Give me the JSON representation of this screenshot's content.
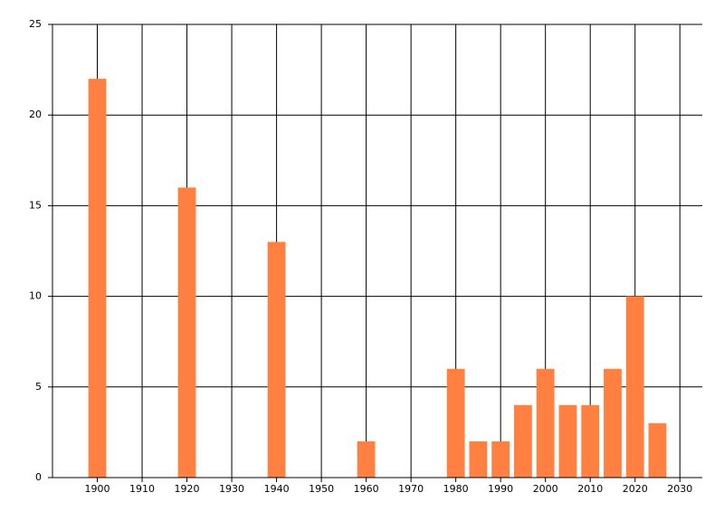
{
  "chart_data": {
    "type": "bar",
    "x": [
      1900,
      1920,
      1940,
      1960,
      1980,
      1985,
      1990,
      1995,
      2000,
      2005,
      2010,
      2015,
      2020,
      2025
    ],
    "values": [
      22,
      16,
      13,
      2,
      6,
      2,
      2,
      4,
      6,
      4,
      4,
      6,
      10,
      3
    ],
    "color": "#ff8040",
    "xlim": [
      1890,
      2035
    ],
    "xticks": [
      1900,
      1910,
      1920,
      1930,
      1940,
      1950,
      1960,
      1970,
      1980,
      1990,
      2000,
      2010,
      2020,
      2030
    ],
    "ylim": [
      0,
      25
    ],
    "yticks": [
      0,
      5,
      10,
      15,
      20,
      25
    ],
    "grid": true
  }
}
